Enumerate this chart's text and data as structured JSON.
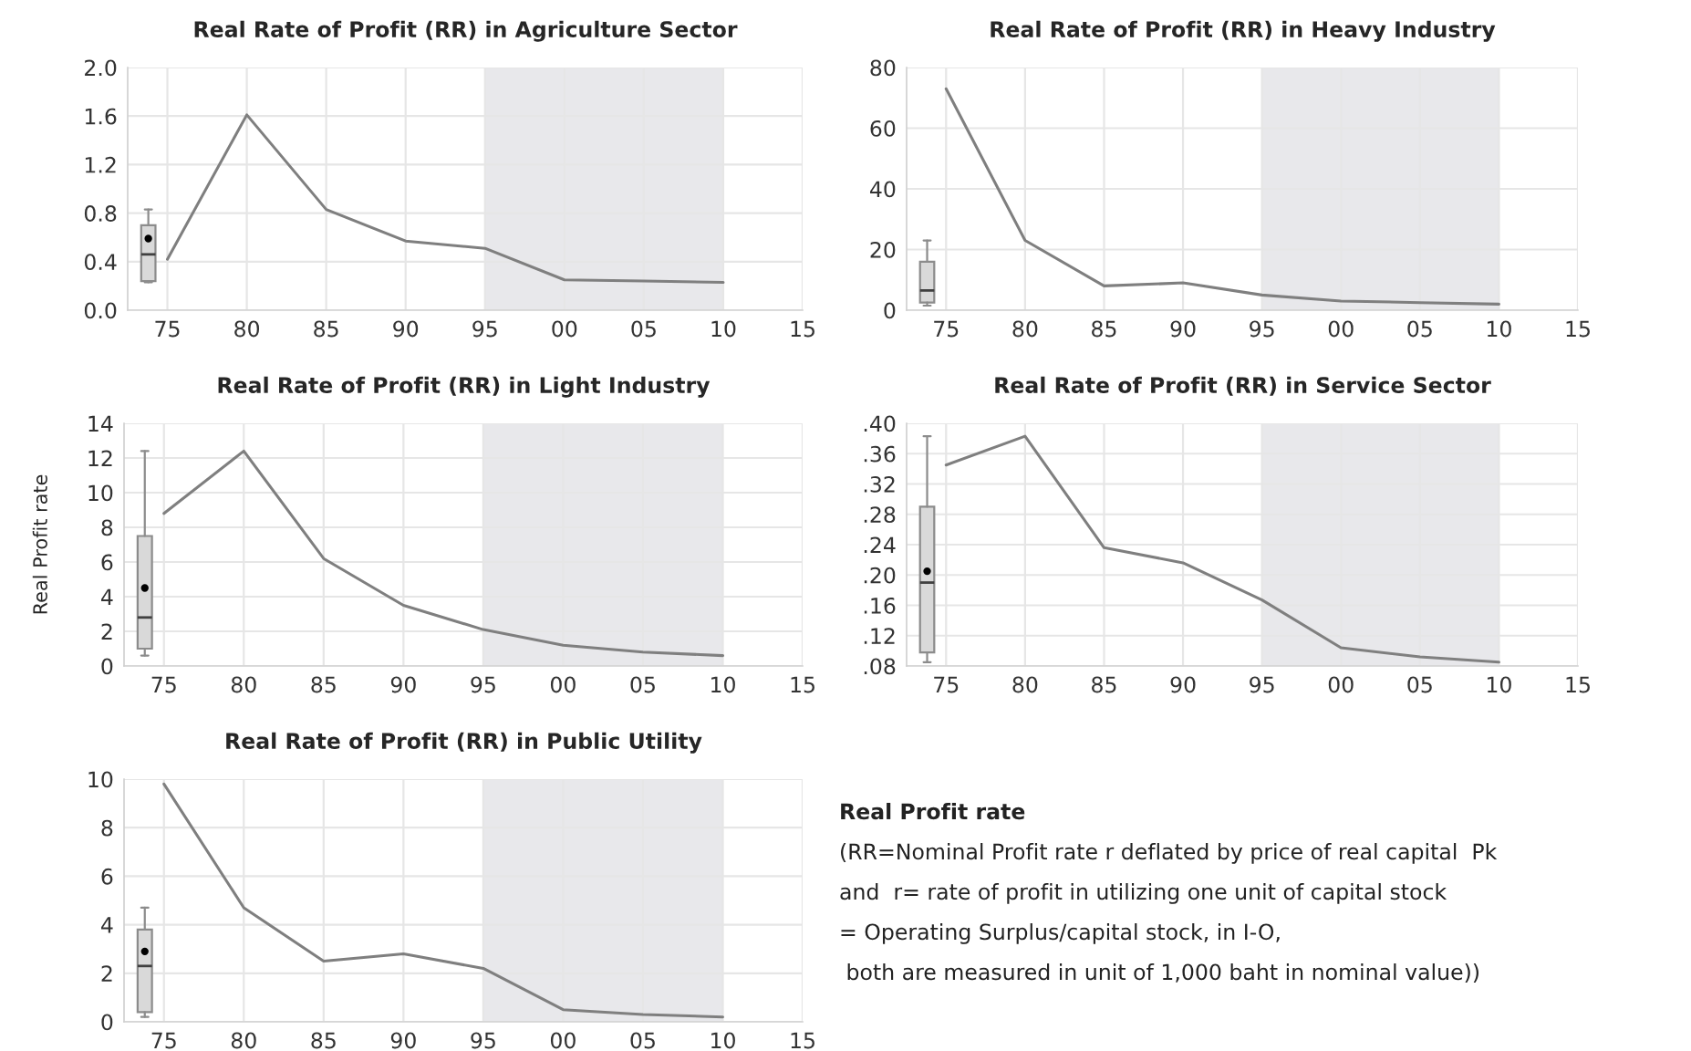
{
  "chart_data": [
    {
      "type": "line",
      "title": "Real Rate of Profit (RR) in Agriculture Sector",
      "xlim": [
        1972.5,
        2015
      ],
      "xticks": [
        {
          "value": 1975,
          "label": "75"
        },
        {
          "value": 1980,
          "label": "80"
        },
        {
          "value": 1985,
          "label": "85"
        },
        {
          "value": 1990,
          "label": "90"
        },
        {
          "value": 1995,
          "label": "95"
        },
        {
          "value": 2000,
          "label": "00"
        },
        {
          "value": 2005,
          "label": "05"
        },
        {
          "value": 2010,
          "label": "10"
        },
        {
          "value": 2015,
          "label": "15"
        }
      ],
      "ylim": [
        0,
        2.0
      ],
      "yticks": [
        {
          "value": 0,
          "label": "0.0"
        },
        {
          "value": 0.4,
          "label": "0.4"
        },
        {
          "value": 0.8,
          "label": "0.8"
        },
        {
          "value": 1.2,
          "label": "1.2"
        },
        {
          "value": 1.6,
          "label": "1.6"
        },
        {
          "value": 2.0,
          "label": "2.0"
        }
      ],
      "grid": true,
      "bands": [
        {
          "axis": "x",
          "from": 1995,
          "to": 2010,
          "color": "#e8e8eb"
        }
      ],
      "series": [
        {
          "type": "line",
          "color": "#7f7f7f",
          "x": [
            1975,
            1980,
            1985,
            1990,
            1995,
            2000,
            2005,
            2010
          ],
          "values": [
            0.42,
            1.61,
            0.83,
            0.57,
            0.51,
            0.25,
            0.24,
            0.23
          ]
        },
        {
          "type": "box",
          "color": "#d9d9d9",
          "x": [
            1973.8
          ],
          "boxes": [
            {
              "low": 0.23,
              "q1": 0.24,
              "median": 0.46,
              "q3": 0.7,
              "high": 0.83,
              "mean": 0.59
            }
          ]
        }
      ]
    },
    {
      "type": "line",
      "title": "Real Rate of Profit (RR) in Heavy Industry",
      "xlim": [
        1972.5,
        2015
      ],
      "xticks": [
        {
          "value": 1975,
          "label": "75"
        },
        {
          "value": 1980,
          "label": "80"
        },
        {
          "value": 1985,
          "label": "85"
        },
        {
          "value": 1990,
          "label": "90"
        },
        {
          "value": 1995,
          "label": "95"
        },
        {
          "value": 2000,
          "label": "00"
        },
        {
          "value": 2005,
          "label": "05"
        },
        {
          "value": 2010,
          "label": "10"
        },
        {
          "value": 2015,
          "label": "15"
        }
      ],
      "ylim": [
        0,
        80
      ],
      "yticks": [
        0,
        20,
        40,
        60,
        80
      ],
      "grid": true,
      "bands": [
        {
          "axis": "x",
          "from": 1995,
          "to": 2010,
          "color": "#e8e8eb"
        }
      ],
      "series": [
        {
          "type": "line",
          "color": "#7f7f7f",
          "x": [
            1975,
            1980,
            1985,
            1990,
            1995,
            2000,
            2005,
            2010
          ],
          "values": [
            73,
            23,
            8,
            9,
            5,
            3,
            2.5,
            2
          ]
        },
        {
          "type": "box",
          "color": "#d9d9d9",
          "x": [
            1973.8
          ],
          "boxes": [
            {
              "low": 1.5,
              "q1": 2.5,
              "median": 6.5,
              "q3": 16,
              "high": 23
            }
          ]
        }
      ]
    },
    {
      "type": "line",
      "title": "Real Rate of Profit (RR) in Light Industry",
      "ylabel": "Real Profit rate",
      "xlim": [
        1972.5,
        2015
      ],
      "xticks": [
        {
          "value": 1975,
          "label": "75"
        },
        {
          "value": 1980,
          "label": "80"
        },
        {
          "value": 1985,
          "label": "85"
        },
        {
          "value": 1990,
          "label": "90"
        },
        {
          "value": 1995,
          "label": "95"
        },
        {
          "value": 2000,
          "label": "00"
        },
        {
          "value": 2005,
          "label": "05"
        },
        {
          "value": 2010,
          "label": "10"
        },
        {
          "value": 2015,
          "label": "15"
        }
      ],
      "ylim": [
        0,
        14
      ],
      "yticks": [
        0,
        2,
        4,
        6,
        8,
        10,
        12,
        14
      ],
      "grid": true,
      "bands": [
        {
          "axis": "x",
          "from": 1995,
          "to": 2010,
          "color": "#e8e8eb"
        }
      ],
      "series": [
        {
          "type": "line",
          "color": "#7f7f7f",
          "x": [
            1975,
            1980,
            1985,
            1990,
            1995,
            2000,
            2005,
            2010
          ],
          "values": [
            8.8,
            12.4,
            6.2,
            3.5,
            2.1,
            1.2,
            0.8,
            0.6
          ]
        },
        {
          "type": "box",
          "color": "#d9d9d9",
          "x": [
            1973.8
          ],
          "boxes": [
            {
              "low": 0.6,
              "q1": 1.0,
              "median": 2.8,
              "q3": 7.5,
              "high": 12.4,
              "mean": 4.5
            }
          ]
        }
      ]
    },
    {
      "type": "line",
      "title": "Real Rate of Profit (RR) in Service Sector",
      "xlim": [
        1972.5,
        2015
      ],
      "xticks": [
        {
          "value": 1975,
          "label": "75"
        },
        {
          "value": 1980,
          "label": "80"
        },
        {
          "value": 1985,
          "label": "85"
        },
        {
          "value": 1990,
          "label": "90"
        },
        {
          "value": 1995,
          "label": "95"
        },
        {
          "value": 2000,
          "label": "00"
        },
        {
          "value": 2005,
          "label": "05"
        },
        {
          "value": 2010,
          "label": "10"
        },
        {
          "value": 2015,
          "label": "15"
        }
      ],
      "ylim": [
        0.08,
        0.4
      ],
      "yticks": [
        {
          "value": 0.08,
          "label": ".08"
        },
        {
          "value": 0.12,
          "label": ".12"
        },
        {
          "value": 0.16,
          "label": ".16"
        },
        {
          "value": 0.2,
          "label": ".20"
        },
        {
          "value": 0.24,
          "label": ".24"
        },
        {
          "value": 0.28,
          "label": ".28"
        },
        {
          "value": 0.32,
          "label": ".32"
        },
        {
          "value": 0.36,
          "label": ".36"
        },
        {
          "value": 0.4,
          "label": ".40"
        }
      ],
      "grid": true,
      "bands": [
        {
          "axis": "x",
          "from": 1995,
          "to": 2010,
          "color": "#e8e8eb"
        }
      ],
      "series": [
        {
          "type": "line",
          "color": "#7f7f7f",
          "x": [
            1975,
            1980,
            1985,
            1990,
            1995,
            2000,
            2005,
            2010
          ],
          "values": [
            0.345,
            0.383,
            0.236,
            0.216,
            0.167,
            0.104,
            0.092,
            0.085
          ]
        },
        {
          "type": "box",
          "color": "#d9d9d9",
          "x": [
            1973.8
          ],
          "boxes": [
            {
              "low": 0.085,
              "q1": 0.098,
              "median": 0.19,
              "q3": 0.29,
              "high": 0.383,
              "mean": 0.205
            }
          ]
        }
      ]
    },
    {
      "type": "line",
      "title": "Real Rate of Profit (RR) in Public Utility",
      "xlim": [
        1972.5,
        2015
      ],
      "xticks": [
        {
          "value": 1975,
          "label": "75"
        },
        {
          "value": 1980,
          "label": "80"
        },
        {
          "value": 1985,
          "label": "85"
        },
        {
          "value": 1990,
          "label": "90"
        },
        {
          "value": 1995,
          "label": "95"
        },
        {
          "value": 2000,
          "label": "00"
        },
        {
          "value": 2005,
          "label": "05"
        },
        {
          "value": 2010,
          "label": "10"
        },
        {
          "value": 2015,
          "label": "15"
        }
      ],
      "ylim": [
        0,
        10
      ],
      "yticks": [
        0,
        2,
        4,
        6,
        8,
        10
      ],
      "grid": true,
      "bands": [
        {
          "axis": "x",
          "from": 1995,
          "to": 2010,
          "color": "#e8e8eb"
        }
      ],
      "series": [
        {
          "type": "line",
          "color": "#7f7f7f",
          "x": [
            1975,
            1980,
            1985,
            1990,
            1995,
            2000,
            2005,
            2010
          ],
          "values": [
            9.8,
            4.7,
            2.5,
            2.8,
            2.2,
            0.5,
            0.3,
            0.2
          ]
        },
        {
          "type": "box",
          "color": "#d9d9d9",
          "x": [
            1973.8
          ],
          "boxes": [
            {
              "low": 0.2,
              "q1": 0.4,
              "median": 2.3,
              "q3": 3.8,
              "high": 4.7,
              "mean": 2.9
            }
          ]
        }
      ]
    },
    {
      "type": "other",
      "title": "Real Profit rate",
      "annotations": [
        "(RR=Nominal Profit rate r deflated by price of real capital  Pk",
        "and  r= rate of profit in utilizing one unit of capital stock",
        "= Operating Surplus/capital stock, in I-O,",
        " both are measured in unit of 1,000 baht in nominal value))"
      ]
    }
  ]
}
